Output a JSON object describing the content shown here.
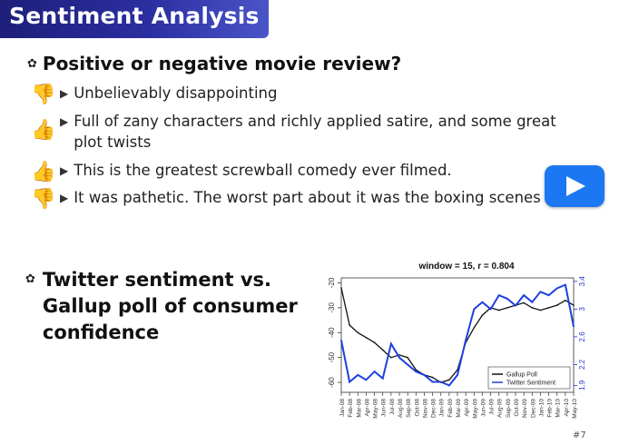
{
  "slide": {
    "title": "Sentiment Analysis",
    "heading": "Positive or negative movie review?",
    "reviews": [
      {
        "text": "Unbelievably disappointing",
        "sentiment": "negative",
        "icon": "thumbs-down-icon"
      },
      {
        "text": "Full of zany characters and richly applied satire, and some great",
        "text2": "plot twists",
        "sentiment": "positive",
        "icon": "thumbs-up-icon"
      },
      {
        "text": "This is the greatest screwball comedy ever filmed.",
        "sentiment": "positive",
        "icon": "thumbs-up-icon"
      },
      {
        "text": "It was pathetic. The worst part about it was the boxing scenes",
        "sentiment": "negative",
        "icon": "thumbs-down-icon"
      }
    ],
    "twitter_heading_lines": [
      "Twitter sentiment vs.",
      "Gallup poll of consumer",
      "confidence"
    ],
    "slide_number": "#7"
  },
  "video": {
    "icon": "play-icon",
    "color": "#1b78f2"
  },
  "chart_data": {
    "type": "line",
    "title": "window = 15, r = 0.804",
    "x_ticks": [
      "Jan-08",
      "Feb-08",
      "Mar-08",
      "Apr-08",
      "May-08",
      "Jun-08",
      "Jul-08",
      "Aug-08",
      "Sep-08",
      "Oct-08",
      "Nov-08",
      "Dec-08",
      "Jan-09",
      "Feb-09",
      "Mar-09",
      "Apr-09",
      "May-09",
      "Jun-09",
      "Jul-09",
      "Aug-09",
      "Sep-09",
      "Oct-09",
      "Nov-09",
      "Dec-09",
      "Jan-10",
      "Feb-10",
      "Mar-10",
      "Apr-10",
      "May-10"
    ],
    "y_left": {
      "ticks": [
        -60,
        -50,
        -40,
        -30,
        -20
      ],
      "ylim": [
        -64,
        -18
      ]
    },
    "y_right": {
      "ticks": [
        1.9,
        2.2,
        2.6,
        3.0,
        3.4
      ],
      "ylim": [
        1.8,
        3.45
      ],
      "color": "#2233cc"
    },
    "legend_position": "bottom-right",
    "series": [
      {
        "name": "Gallup Poll",
        "axis": "left",
        "color": "#111111",
        "values": [
          -22,
          -37,
          -40,
          -42,
          -44,
          -47,
          -50,
          -49,
          -50,
          -55,
          -57,
          -58,
          -60,
          -59,
          -55,
          -44,
          -38,
          -33,
          -30,
          -31,
          -30,
          -29,
          -28,
          -30,
          -31,
          -30,
          -29,
          -27,
          -29
        ]
      },
      {
        "name": "Twitter Sentiment",
        "axis": "right",
        "color": "#1f3fe0",
        "values": [
          2.55,
          1.95,
          2.05,
          1.98,
          2.1,
          2.0,
          2.5,
          2.3,
          2.2,
          2.1,
          2.05,
          1.95,
          1.95,
          1.9,
          2.05,
          2.55,
          3.0,
          3.1,
          3.0,
          3.2,
          3.15,
          3.05,
          3.2,
          3.1,
          3.25,
          3.2,
          3.3,
          3.35,
          2.75
        ]
      }
    ]
  }
}
